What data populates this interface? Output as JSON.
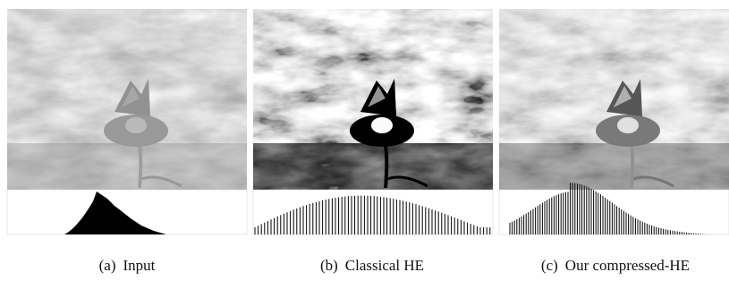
{
  "panels": [
    {
      "label": "(a)",
      "caption": "Input"
    },
    {
      "label": "(b)",
      "caption": "Classical HE"
    },
    {
      "label": "(c)",
      "caption": "Our compressed-HE"
    }
  ]
}
